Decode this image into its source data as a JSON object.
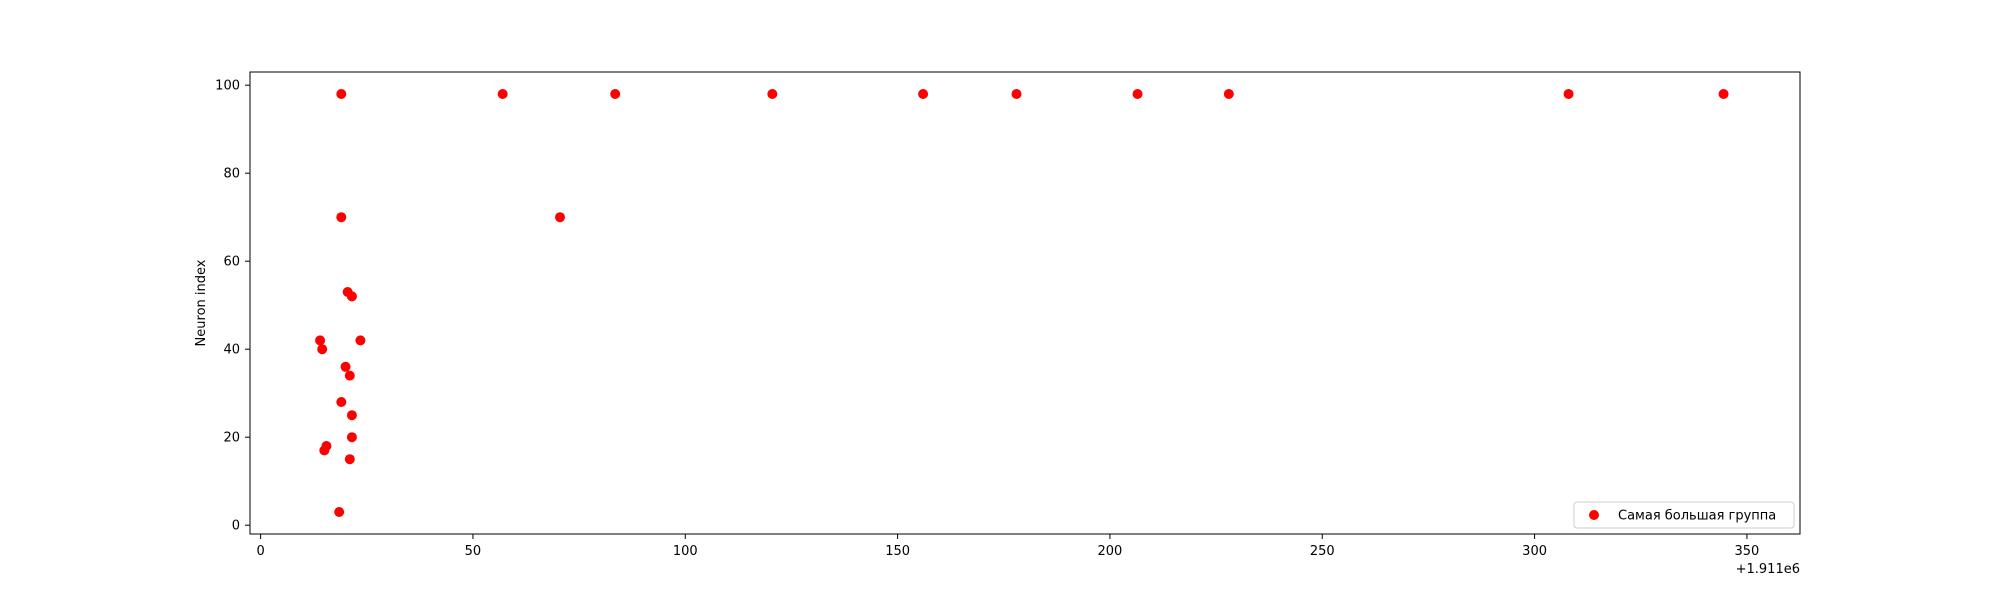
{
  "chart_data": {
    "type": "scatter",
    "title": "",
    "xlabel": "",
    "ylabel": "Neuron index",
    "x_offset_label": "+1.911e6",
    "xlim": [
      -2.5,
      362.5
    ],
    "ylim": [
      -2,
      103
    ],
    "x_ticks": [
      0,
      50,
      100,
      150,
      200,
      250,
      300,
      350
    ],
    "y_ticks": [
      0,
      20,
      40,
      60,
      80,
      100
    ],
    "grid": false,
    "legend_position": "lower-right",
    "marker_color": "#ff0000",
    "series": [
      {
        "name": "Самая большая группа",
        "points": [
          {
            "x": 19,
            "y": 98
          },
          {
            "x": 57,
            "y": 98
          },
          {
            "x": 83.5,
            "y": 98
          },
          {
            "x": 120.5,
            "y": 98
          },
          {
            "x": 156,
            "y": 98
          },
          {
            "x": 178,
            "y": 98
          },
          {
            "x": 206.5,
            "y": 98
          },
          {
            "x": 228,
            "y": 98
          },
          {
            "x": 308,
            "y": 98
          },
          {
            "x": 344.5,
            "y": 98
          },
          {
            "x": 19,
            "y": 70
          },
          {
            "x": 70.5,
            "y": 70
          },
          {
            "x": 20.5,
            "y": 53
          },
          {
            "x": 21.5,
            "y": 52
          },
          {
            "x": 14,
            "y": 42
          },
          {
            "x": 23.5,
            "y": 42
          },
          {
            "x": 14.5,
            "y": 40
          },
          {
            "x": 20,
            "y": 36
          },
          {
            "x": 21,
            "y": 34
          },
          {
            "x": 19,
            "y": 28
          },
          {
            "x": 21.5,
            "y": 25
          },
          {
            "x": 21.5,
            "y": 20
          },
          {
            "x": 15.5,
            "y": 18
          },
          {
            "x": 15,
            "y": 17
          },
          {
            "x": 21,
            "y": 15
          },
          {
            "x": 18.5,
            "y": 3
          }
        ]
      }
    ]
  }
}
